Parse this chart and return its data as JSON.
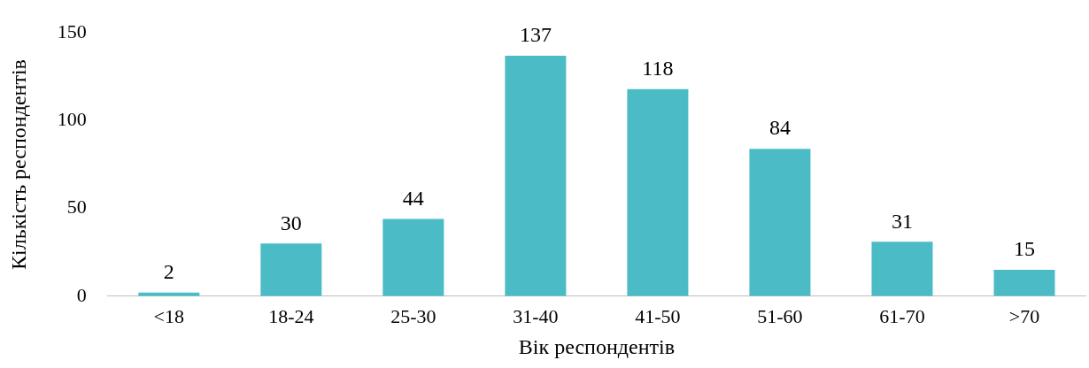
{
  "chart_data": {
    "type": "bar",
    "xlabel": "Вік респондентів",
    "ylabel": "Кількість респондентів",
    "categories": [
      "<18",
      "18-24",
      "25-30",
      "31-40",
      "41-50",
      "51-60",
      "61-70",
      ">70"
    ],
    "values": [
      2,
      30,
      44,
      137,
      118,
      84,
      31,
      15
    ],
    "color": "#4bbcc6",
    "ylim": [
      0,
      150
    ],
    "yticks": [
      0,
      50,
      100,
      150
    ],
    "grid": false,
    "data_labels": true,
    "legend": false
  }
}
